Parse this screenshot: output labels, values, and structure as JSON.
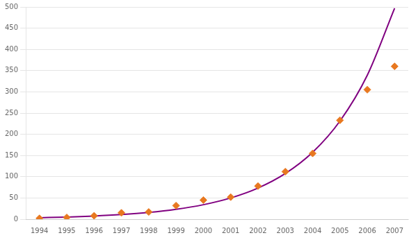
{
  "chart_data": {
    "type": "scatter",
    "x": [
      1994,
      1995,
      1996,
      1997,
      1998,
      1999,
      2000,
      2001,
      2002,
      2003,
      2004,
      2005,
      2006,
      2007
    ],
    "series": [
      {
        "type": "line",
        "color": "#800080",
        "line_style": "solid",
        "values": [
          3.43,
          5.04,
          7.38,
          10.83,
          15.87,
          23.28,
          34.13,
          50.04,
          73.36,
          107.57,
          157.72,
          231.25,
          339.05,
          497.12
        ]
      },
      {
        "type": "scatter",
        "color": "#E87820",
        "marker": "diamond",
        "values": [
          2,
          4,
          8,
          15,
          17,
          32,
          45,
          52,
          78,
          112,
          155,
          233,
          305,
          360
        ]
      }
    ],
    "xlim": [
      1993.5,
      2007.5
    ],
    "xticks": [
      1994,
      1995,
      1996,
      1997,
      1998,
      1999,
      2000,
      2001,
      2002,
      2003,
      2004,
      2005,
      2006,
      2007
    ],
    "ylim": [
      0,
      500
    ],
    "yticks": [
      0,
      50,
      100,
      150,
      200,
      250,
      300,
      350,
      400,
      450,
      500
    ],
    "grid": "y"
  }
}
